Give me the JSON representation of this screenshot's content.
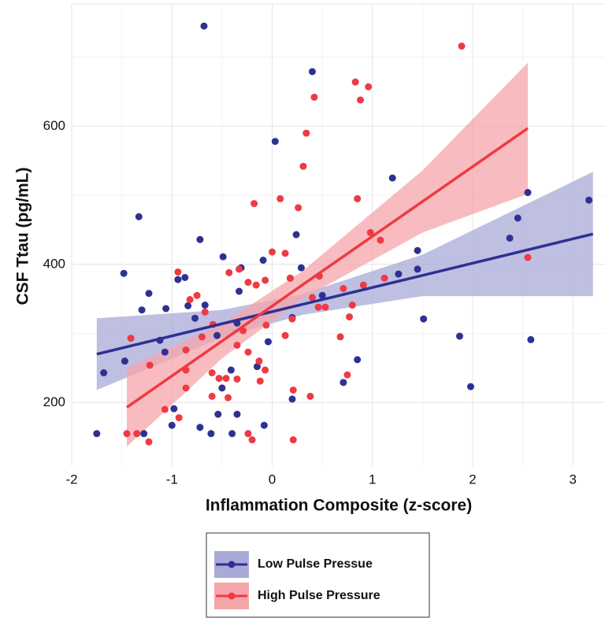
{
  "chart_data": {
    "type": "scatter",
    "x_label": "Inflammation Composite (z-score)",
    "y_label": "CSF Ttau (pg/mL)",
    "xlim": [
      -2,
      3.32
    ],
    "ylim": [
      108,
      777
    ],
    "xticks": [
      -2,
      -1,
      0,
      1,
      2,
      3
    ],
    "yticks": [
      200,
      400,
      600
    ],
    "grid": true,
    "minor_grid": true,
    "legend": "bottom",
    "series": [
      {
        "name": "Low Pulse Pressue",
        "color": "#2e3192",
        "band_color": "#a9aad8",
        "x": [
          -1.75,
          -1.68,
          -1.48,
          -1.47,
          -1.33,
          -1.3,
          -1.28,
          -1.23,
          -1.12,
          -1.07,
          -1.06,
          -0.98,
          -1.0,
          -0.94,
          -0.87,
          -0.84,
          -0.77,
          -0.72,
          -0.72,
          -0.68,
          -0.67,
          -0.61,
          -0.55,
          -0.54,
          -0.5,
          -0.49,
          -0.41,
          -0.4,
          -0.35,
          -0.35,
          -0.33,
          -0.31,
          -0.15,
          -0.09,
          -0.08,
          -0.04,
          0.03,
          0.2,
          0.2,
          0.18,
          0.24,
          0.29,
          0.4,
          0.5,
          0.71,
          0.85,
          1.2,
          1.26,
          1.45,
          1.45,
          1.51,
          1.87,
          1.98,
          2.37,
          2.58,
          2.45,
          2.55,
          3.16
        ],
        "y": [
          155,
          243,
          387,
          260,
          469,
          334,
          155,
          358,
          290,
          273,
          336,
          191,
          167,
          378,
          381,
          340,
          322,
          436,
          164,
          745,
          341,
          155,
          297,
          183,
          221,
          411,
          247,
          155,
          315,
          183,
          361,
          395,
          252,
          406,
          167,
          288,
          578,
          205,
          323,
          380,
          443,
          395,
          679,
          355,
          229,
          262,
          525,
          386,
          393,
          420,
          321,
          296,
          223,
          438,
          291,
          467,
          504,
          493
        ],
        "fit": {
          "x": [
            -1.75,
            -0.5,
            0.3,
            1.5,
            3.2
          ],
          "y": [
            270,
            314,
            342,
            384,
            444
          ],
          "lower": [
            218,
            294,
            327,
            354,
            354
          ],
          "upper": [
            322,
            334,
            357,
            414,
            534
          ]
        }
      },
      {
        "name": "High Pulse Pressure",
        "color": "#ee3a43",
        "band_color": "#f5a6ab",
        "x": [
          -1.45,
          -1.41,
          -1.35,
          -1.23,
          -1.22,
          -1.07,
          -0.94,
          -0.93,
          -0.86,
          -0.86,
          -0.86,
          -0.82,
          -0.75,
          -0.7,
          -0.67,
          -0.6,
          -0.6,
          -0.59,
          -0.53,
          -0.46,
          -0.44,
          -0.43,
          -0.35,
          -0.35,
          -0.33,
          -0.29,
          -0.24,
          -0.24,
          -0.2,
          -0.24,
          -0.18,
          -0.16,
          -0.13,
          -0.12,
          -0.07,
          -0.07,
          -0.06,
          0,
          0.08,
          0.13,
          0.18,
          0.13,
          0.2,
          0.21,
          0.21,
          0.26,
          0.31,
          0.34,
          0.38,
          0.4,
          0.42,
          0.46,
          0.47,
          0.53,
          0.68,
          0.71,
          0.75,
          0.77,
          0.8,
          0.83,
          0.85,
          0.88,
          0.91,
          0.96,
          0.98,
          1.08,
          1.12,
          1.89,
          2.55
        ],
        "y": [
          155,
          293,
          155,
          143,
          254,
          190,
          389,
          178,
          221,
          247,
          276,
          349,
          355,
          295,
          331,
          209,
          243,
          313,
          235,
          235,
          207,
          388,
          234,
          283,
          393,
          304,
          374,
          155,
          146,
          273,
          488,
          370,
          260,
          231,
          247,
          377,
          312,
          418,
          495,
          416,
          380,
          297,
          321,
          218,
          146,
          482,
          542,
          590,
          209,
          352,
          642,
          338,
          383,
          338,
          295,
          365,
          240,
          324,
          341,
          664,
          495,
          638,
          370,
          657,
          446,
          435,
          380,
          716,
          410
        ],
        "fit": {
          "x": [
            -1.45,
            -0.5,
            0.3,
            1.5,
            2.55
          ],
          "y": [
            193,
            289,
            370,
            491,
            597
          ],
          "lower": [
            136,
            264,
            350,
            446,
            502
          ],
          "upper": [
            250,
            314,
            390,
            536,
            692
          ]
        }
      }
    ]
  }
}
